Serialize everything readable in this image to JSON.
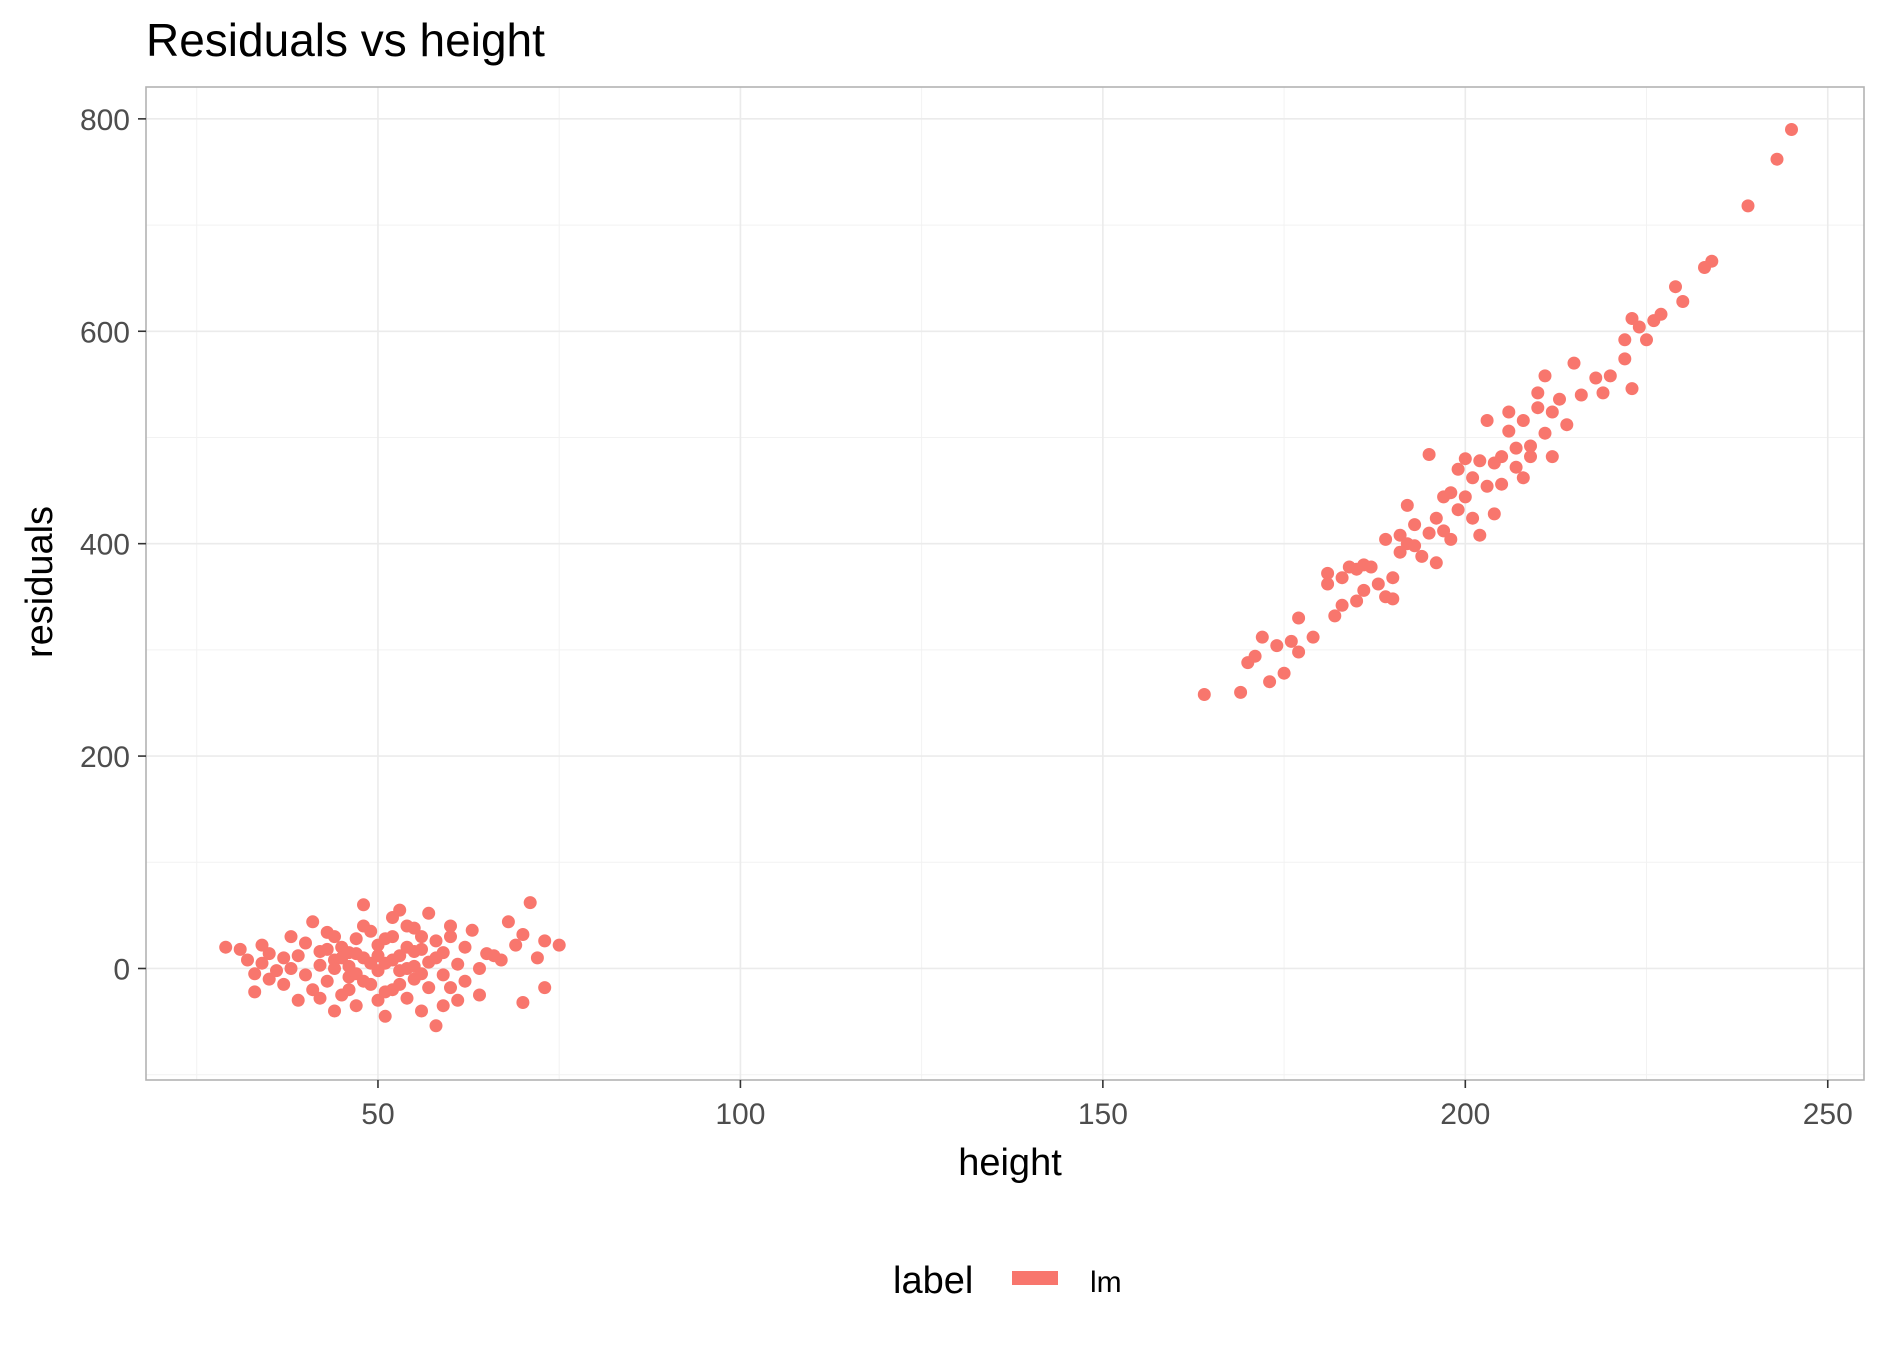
{
  "chart_data": {
    "type": "scatter",
    "title": "Residuals vs height",
    "xlabel": "height",
    "ylabel": "residuals",
    "xlim": [
      18,
      255
    ],
    "ylim": [
      -105,
      830
    ],
    "x_ticks": [
      50,
      100,
      150,
      200,
      250
    ],
    "y_ticks": [
      0,
      200,
      400,
      600,
      800
    ],
    "x_tick_labels": [
      "50",
      "100",
      "150",
      "200",
      "250"
    ],
    "y_tick_labels": [
      "0",
      "200",
      "400",
      "600",
      "800"
    ],
    "grid": true,
    "legend": {
      "title": "label",
      "position": "bottom",
      "entries": [
        {
          "label": "lm",
          "color": "#F8766D"
        }
      ]
    },
    "series": [
      {
        "name": "lm",
        "color": "#F8766D",
        "points": [
          [
            29,
            20
          ],
          [
            31,
            18
          ],
          [
            32,
            8
          ],
          [
            33,
            -5
          ],
          [
            33,
            -22
          ],
          [
            34,
            22
          ],
          [
            34,
            5
          ],
          [
            35,
            -10
          ],
          [
            35,
            14
          ],
          [
            36,
            -2
          ],
          [
            37,
            10
          ],
          [
            37,
            -15
          ],
          [
            38,
            0
          ],
          [
            38,
            30
          ],
          [
            39,
            -30
          ],
          [
            39,
            12
          ],
          [
            40,
            -6
          ],
          [
            40,
            24
          ],
          [
            41,
            44
          ],
          [
            41,
            -20
          ],
          [
            42,
            3
          ],
          [
            42,
            16
          ],
          [
            43,
            -12
          ],
          [
            43,
            34
          ],
          [
            44,
            -40
          ],
          [
            44,
            8
          ],
          [
            45,
            -25
          ],
          [
            45,
            20
          ],
          [
            46,
            2
          ],
          [
            46,
            -8
          ],
          [
            47,
            28
          ],
          [
            47,
            -35
          ],
          [
            48,
            60
          ],
          [
            48,
            10
          ],
          [
            49,
            -15
          ],
          [
            49,
            35
          ],
          [
            50,
            -2
          ],
          [
            50,
            22
          ],
          [
            51,
            -45
          ],
          [
            51,
            5
          ],
          [
            52,
            48
          ],
          [
            52,
            -20
          ],
          [
            53,
            12
          ],
          [
            53,
            55
          ],
          [
            54,
            -28
          ],
          [
            54,
            0
          ],
          [
            55,
            38
          ],
          [
            55,
            -10
          ],
          [
            56,
            18
          ],
          [
            56,
            -40
          ],
          [
            57,
            52
          ],
          [
            57,
            6
          ],
          [
            58,
            -54
          ],
          [
            58,
            26
          ],
          [
            59,
            -6
          ],
          [
            59,
            15
          ],
          [
            60,
            30
          ],
          [
            60,
            -18
          ],
          [
            61,
            4
          ],
          [
            61,
            -30
          ],
          [
            62,
            20
          ],
          [
            62,
            -12
          ],
          [
            63,
            36
          ],
          [
            64,
            0
          ],
          [
            64,
            -25
          ],
          [
            65,
            14
          ],
          [
            66,
            12
          ],
          [
            67,
            8
          ],
          [
            68,
            44
          ],
          [
            69,
            22
          ],
          [
            70,
            32
          ],
          [
            70,
            -32
          ],
          [
            71,
            62
          ],
          [
            72,
            10
          ],
          [
            73,
            -18
          ],
          [
            73,
            26
          ],
          [
            75,
            22
          ],
          [
            44,
            0
          ],
          [
            45,
            10
          ],
          [
            46,
            15
          ],
          [
            47,
            -5
          ],
          [
            48,
            -12
          ],
          [
            49,
            5
          ],
          [
            50,
            12
          ],
          [
            51,
            -22
          ],
          [
            52,
            8
          ],
          [
            53,
            -15
          ],
          [
            54,
            20
          ],
          [
            55,
            2
          ],
          [
            56,
            -5
          ],
          [
            57,
            -18
          ],
          [
            58,
            10
          ],
          [
            46,
            -20
          ],
          [
            48,
            40
          ],
          [
            50,
            -30
          ],
          [
            52,
            30
          ],
          [
            54,
            40
          ],
          [
            56,
            30
          ],
          [
            43,
            18
          ],
          [
            42,
            -28
          ],
          [
            44,
            30
          ],
          [
            60,
            40
          ],
          [
            59,
            -35
          ],
          [
            47,
            14
          ],
          [
            53,
            -2
          ],
          [
            55,
            16
          ],
          [
            51,
            28
          ],
          [
            164,
            258
          ],
          [
            169,
            260
          ],
          [
            170,
            288
          ],
          [
            171,
            294
          ],
          [
            172,
            312
          ],
          [
            173,
            270
          ],
          [
            174,
            304
          ],
          [
            175,
            278
          ],
          [
            176,
            308
          ],
          [
            177,
            298
          ],
          [
            177,
            330
          ],
          [
            179,
            312
          ],
          [
            181,
            372
          ],
          [
            181,
            362
          ],
          [
            182,
            332
          ],
          [
            183,
            342
          ],
          [
            183,
            368
          ],
          [
            184,
            378
          ],
          [
            185,
            346
          ],
          [
            185,
            376
          ],
          [
            186,
            356
          ],
          [
            186,
            380
          ],
          [
            187,
            378
          ],
          [
            188,
            362
          ],
          [
            189,
            404
          ],
          [
            189,
            350
          ],
          [
            190,
            368
          ],
          [
            190,
            348
          ],
          [
            191,
            408
          ],
          [
            191,
            392
          ],
          [
            192,
            436
          ],
          [
            192,
            400
          ],
          [
            193,
            398
          ],
          [
            193,
            418
          ],
          [
            194,
            388
          ],
          [
            195,
            410
          ],
          [
            195,
            484
          ],
          [
            196,
            424
          ],
          [
            196,
            382
          ],
          [
            197,
            444
          ],
          [
            197,
            412
          ],
          [
            198,
            448
          ],
          [
            198,
            404
          ],
          [
            199,
            432
          ],
          [
            199,
            470
          ],
          [
            200,
            480
          ],
          [
            200,
            444
          ],
          [
            201,
            424
          ],
          [
            201,
            462
          ],
          [
            202,
            478
          ],
          [
            202,
            408
          ],
          [
            203,
            454
          ],
          [
            203,
            516
          ],
          [
            204,
            428
          ],
          [
            204,
            476
          ],
          [
            205,
            456
          ],
          [
            205,
            482
          ],
          [
            206,
            506
          ],
          [
            206,
            524
          ],
          [
            207,
            490
          ],
          [
            207,
            472
          ],
          [
            208,
            462
          ],
          [
            208,
            516
          ],
          [
            209,
            492
          ],
          [
            209,
            482
          ],
          [
            210,
            528
          ],
          [
            210,
            542
          ],
          [
            211,
            504
          ],
          [
            211,
            558
          ],
          [
            212,
            482
          ],
          [
            212,
            524
          ],
          [
            213,
            536
          ],
          [
            214,
            512
          ],
          [
            215,
            570
          ],
          [
            216,
            540
          ],
          [
            218,
            556
          ],
          [
            219,
            542
          ],
          [
            220,
            558
          ],
          [
            222,
            574
          ],
          [
            222,
            592
          ],
          [
            223,
            546
          ],
          [
            223,
            612
          ],
          [
            224,
            604
          ],
          [
            225,
            592
          ],
          [
            226,
            610
          ],
          [
            227,
            616
          ],
          [
            229,
            642
          ],
          [
            230,
            628
          ],
          [
            233,
            660
          ],
          [
            234,
            666
          ],
          [
            239,
            718
          ],
          [
            243,
            762
          ],
          [
            245,
            790
          ]
        ]
      }
    ]
  }
}
